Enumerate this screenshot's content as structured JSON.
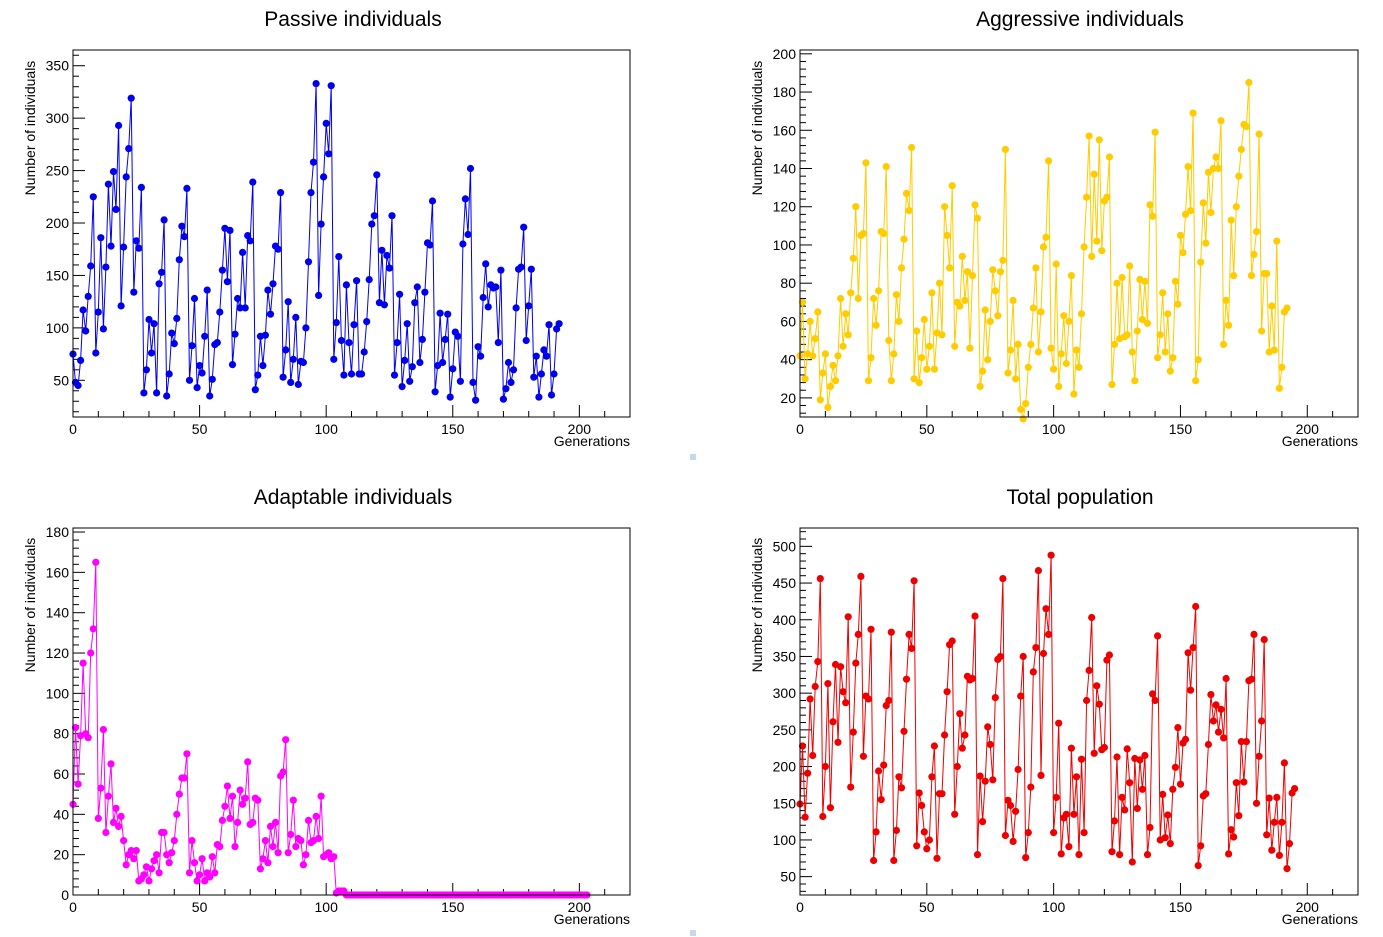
{
  "panel_divider_color": "#c8d8ec",
  "chart_data": [
    {
      "type": "line",
      "title": "Passive individuals",
      "xlabel": "Generations",
      "ylabel": "Number of individuals",
      "color": "#0000ee",
      "xlim": [
        0,
        220
      ],
      "ylim": [
        15,
        365
      ],
      "xticks": [
        0,
        50,
        100,
        150,
        200
      ],
      "yticks": [
        50,
        100,
        150,
        200,
        250,
        300,
        350
      ],
      "x_start": 0,
      "x_step": 1,
      "values": [
        75,
        48,
        45,
        69,
        117,
        97,
        130,
        159,
        225,
        76,
        115,
        186,
        99,
        158,
        237,
        178,
        249,
        213,
        293,
        121,
        177,
        244,
        271,
        319,
        134,
        183,
        176,
        234,
        38,
        60,
        108,
        76,
        104,
        38,
        142,
        153,
        203,
        35,
        56,
        95,
        85,
        109,
        165,
        197,
        187,
        233,
        50,
        83,
        128,
        43,
        64,
        57,
        92,
        136,
        35,
        51,
        84,
        86,
        115,
        155,
        195,
        144,
        193,
        65,
        94,
        128,
        119,
        172,
        119,
        188,
        183,
        239,
        41,
        55,
        92,
        64,
        93,
        136,
        113,
        142,
        178,
        175,
        229,
        53,
        79,
        125,
        48,
        70,
        110,
        46,
        68,
        67,
        100,
        163,
        229,
        258,
        333,
        131,
        199,
        244,
        295,
        266,
        331,
        70,
        105,
        168,
        88,
        55,
        141,
        86,
        56,
        103,
        145,
        56,
        56,
        77,
        106,
        146,
        199,
        207,
        246,
        124,
        174,
        122,
        169,
        157,
        207,
        55,
        86,
        132,
        44,
        69,
        104,
        49,
        63,
        124,
        139,
        67,
        89,
        134,
        181,
        179,
        221,
        39,
        64,
        114,
        67,
        89,
        113,
        34,
        61,
        96,
        92,
        49,
        180,
        223,
        189,
        252,
        48,
        31,
        82,
        73,
        129,
        161,
        120,
        141,
        138,
        139,
        86,
        155,
        32,
        42,
        67,
        48,
        60,
        119,
        156,
        158,
        196,
        88,
        121,
        156,
        53,
        73,
        34,
        56,
        79,
        73,
        103,
        36,
        56,
        99,
        104
      ]
    },
    {
      "type": "line",
      "title": "Aggressive individuals",
      "xlabel": "Generations",
      "ylabel": "Number of individuals",
      "color": "#ffcc00",
      "xlim": [
        0,
        220
      ],
      "ylim": [
        10,
        202
      ],
      "xticks": [
        0,
        50,
        100,
        150,
        200
      ],
      "yticks": [
        20,
        40,
        60,
        80,
        100,
        120,
        140,
        160,
        180,
        200
      ],
      "x_start": 0,
      "x_step": 1,
      "values": [
        42,
        70,
        30,
        43,
        60,
        42,
        51,
        65,
        19,
        33,
        43,
        15,
        26,
        37,
        29,
        42,
        72,
        47,
        64,
        53,
        75,
        93,
        120,
        72,
        105,
        106,
        143,
        29,
        41,
        72,
        58,
        76,
        107,
        106,
        141,
        50,
        29,
        43,
        74,
        60,
        88,
        103,
        127,
        118,
        151,
        30,
        55,
        28,
        41,
        61,
        35,
        47,
        75,
        35,
        54,
        80,
        53,
        120,
        105,
        88,
        131,
        47,
        70,
        68,
        94,
        71,
        86,
        46,
        84,
        121,
        114,
        26,
        34,
        66,
        40,
        60,
        87,
        76,
        63,
        86,
        92,
        150,
        33,
        45,
        71,
        30,
        48,
        14,
        9,
        17,
        36,
        48,
        67,
        88,
        44,
        65,
        99,
        104,
        144,
        46,
        35,
        90,
        26,
        43,
        63,
        38,
        60,
        84,
        22,
        45,
        36,
        64,
        99,
        125,
        157,
        94,
        137,
        102,
        155,
        97,
        123,
        125,
        146,
        27,
        48,
        80,
        51,
        83,
        52,
        53,
        89,
        44,
        29,
        55,
        82,
        61,
        81,
        59,
        121,
        115,
        159,
        41,
        53,
        75,
        44,
        64,
        34,
        41,
        81,
        69,
        105,
        96,
        116,
        141,
        118,
        169,
        29,
        40,
        91,
        122,
        101,
        138,
        117,
        140,
        146,
        140,
        165,
        48,
        71,
        58,
        113,
        84,
        120,
        136,
        150,
        163,
        162,
        185,
        84,
        95,
        107,
        158,
        55,
        85,
        85,
        44,
        68,
        45,
        102,
        25,
        36,
        65,
        67
      ]
    },
    {
      "type": "line",
      "title": "Adaptable individuals",
      "xlabel": "Generations",
      "ylabel": "Number of individuals",
      "color": "#ff00ff",
      "xlim": [
        0,
        220
      ],
      "ylim": [
        0,
        182
      ],
      "xticks": [
        0,
        50,
        100,
        150,
        200
      ],
      "yticks": [
        0,
        20,
        40,
        60,
        80,
        100,
        120,
        140,
        160,
        180
      ],
      "x_start": 0,
      "x_step": 1,
      "values": [
        45,
        83,
        55,
        79,
        115,
        80,
        78,
        120,
        132,
        165,
        38,
        53,
        82,
        31,
        49,
        65,
        36,
        43,
        34,
        39,
        27,
        15,
        20,
        22,
        18,
        22,
        7,
        8,
        10,
        14,
        7,
        13,
        17,
        20,
        11,
        31,
        31,
        20,
        16,
        21,
        27,
        40,
        50,
        58,
        58,
        70,
        11,
        27,
        16,
        7,
        10,
        18,
        7,
        11,
        9,
        19,
        11,
        25,
        24,
        37,
        44,
        54,
        38,
        49,
        24,
        36,
        52,
        45,
        48,
        66,
        35,
        36,
        48,
        47,
        13,
        18,
        27,
        16,
        34,
        24,
        36,
        21,
        59,
        61,
        77,
        21,
        30,
        47,
        24,
        28,
        27,
        15,
        20,
        37,
        26,
        27,
        39,
        28,
        49,
        19,
        20,
        21,
        18,
        19,
        1,
        2,
        2,
        2,
        0,
        0,
        0,
        0,
        0,
        0,
        0,
        0,
        0,
        0,
        0,
        0,
        0,
        0,
        0,
        0,
        0,
        0,
        0,
        0,
        0,
        0,
        0,
        0,
        0,
        0,
        0,
        0,
        0,
        0,
        0,
        0,
        0,
        0,
        0,
        0,
        0,
        0,
        0,
        0,
        0,
        0,
        0,
        0,
        0,
        0,
        0,
        0,
        0,
        0,
        0,
        0,
        0,
        0,
        0,
        0,
        0,
        0,
        0,
        0,
        0,
        0,
        0,
        0,
        0,
        0,
        0,
        0,
        0,
        0,
        0,
        0,
        0,
        0,
        0,
        0,
        0,
        0,
        0,
        0,
        0,
        0,
        0,
        0,
        0,
        0,
        0,
        0,
        0,
        0,
        0,
        0,
        0,
        0,
        0,
        0
      ]
    },
    {
      "type": "line",
      "title": "Total population",
      "xlabel": "Generations",
      "ylabel": "Number of individuals",
      "color": "#ee0000",
      "xlim": [
        0,
        220
      ],
      "ylim": [
        25,
        525
      ],
      "xticks": [
        0,
        50,
        100,
        150,
        200
      ],
      "yticks": [
        50,
        100,
        150,
        200,
        250,
        300,
        350,
        400,
        450,
        500
      ],
      "x_start": 0,
      "x_step": 1,
      "values": [
        149,
        228,
        131,
        191,
        292,
        215,
        309,
        343,
        456,
        132,
        200,
        313,
        144,
        261,
        339,
        233,
        336,
        302,
        287,
        404,
        172,
        247,
        341,
        380,
        459,
        214,
        296,
        292,
        387,
        72,
        111,
        194,
        155,
        202,
        283,
        290,
        383,
        72,
        113,
        186,
        171,
        248,
        319,
        380,
        361,
        453,
        92,
        164,
        147,
        111,
        88,
        100,
        186,
        228,
        75,
        163,
        163,
        243,
        302,
        366,
        371,
        135,
        200,
        272,
        225,
        243,
        323,
        318,
        320,
        405,
        80,
        187,
        125,
        180,
        254,
        230,
        182,
        294,
        346,
        350,
        456,
        106,
        154,
        147,
        98,
        139,
        196,
        296,
        350,
        76,
        110,
        172,
        329,
        362,
        467,
        188,
        354,
        415,
        380,
        488,
        110,
        158,
        259,
        81,
        130,
        135,
        91,
        225,
        135,
        186,
        80,
        210,
        110,
        290,
        331,
        403,
        218,
        310,
        285,
        223,
        226,
        345,
        352,
        84,
        126,
        213,
        80,
        158,
        141,
        224,
        178,
        70,
        211,
        143,
        209,
        169,
        215,
        80,
        117,
        299,
        290,
        378,
        100,
        162,
        103,
        134,
        95,
        169,
        199,
        253,
        176,
        232,
        237,
        355,
        304,
        362,
        418,
        65,
        92,
        160,
        163,
        230,
        298,
        262,
        284,
        247,
        278,
        239,
        320,
        81,
        114,
        104,
        178,
        133,
        234,
        179,
        234,
        317,
        319,
        380,
        150,
        214,
        262,
        373,
        107,
        157,
        86,
        124,
        158,
        79,
        124,
        205,
        61,
        95,
        164,
        170
      ]
    }
  ]
}
